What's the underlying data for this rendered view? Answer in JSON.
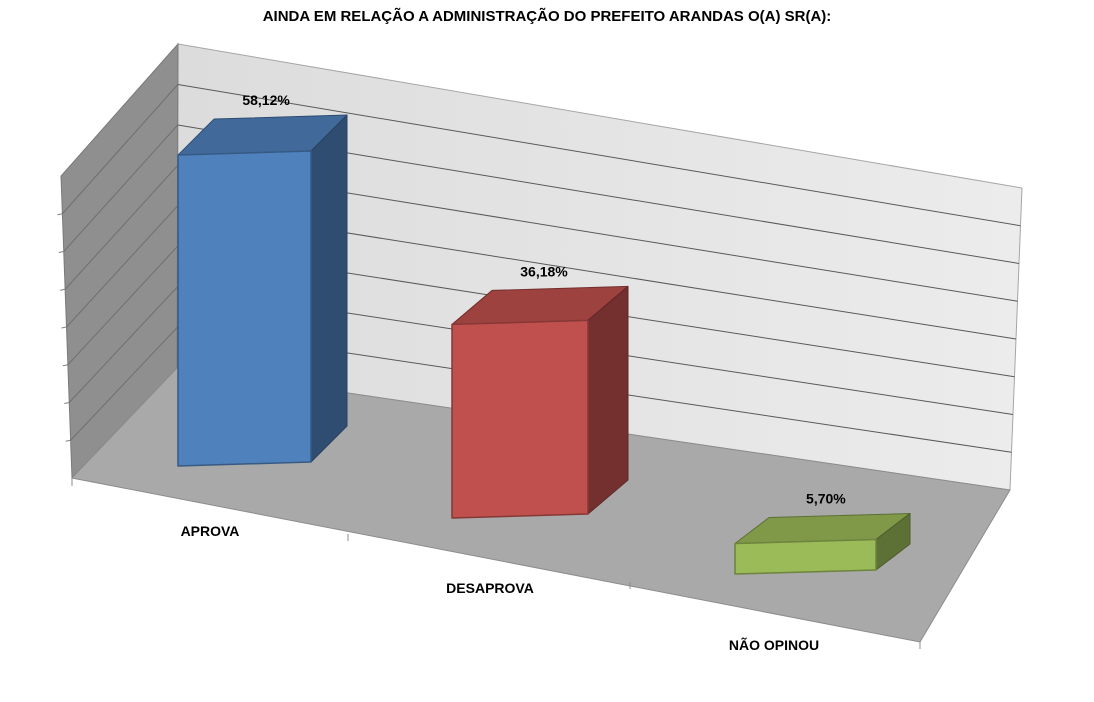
{
  "chart_data": {
    "type": "bar",
    "title": "AINDA EM RELAÇÃO A ADMINISTRAÇÃO DO PREFEITO ARANDAS O(A) SR(A):",
    "categories": [
      "APROVA",
      "DESAPROVA",
      "NÃO OPINOU"
    ],
    "values": [
      58.12,
      36.18,
      5.7
    ],
    "value_labels": [
      "58,12%",
      "36,18%",
      "5,70%"
    ],
    "ylim": [
      0,
      80
    ],
    "grid": true,
    "legend": "none",
    "colors": [
      "#4F81BD",
      "#C0504D",
      "#9BBB59"
    ]
  }
}
